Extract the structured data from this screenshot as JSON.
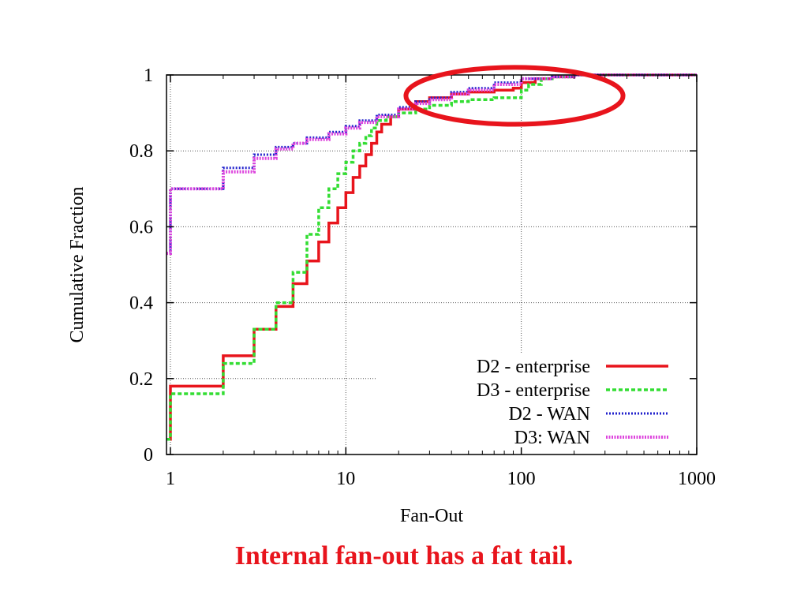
{
  "caption": "Internal fan-out has a fat tail.",
  "colors": {
    "caption": "#e8141c",
    "highlight_ellipse": "#e8141c"
  },
  "chart_data": {
    "type": "line",
    "xscale": "log",
    "xlabel": "Fan-Out",
    "ylabel": "Cumulative Fraction",
    "xlim": [
      0.95,
      1000
    ],
    "ylim": [
      0,
      1
    ],
    "xticks": [
      {
        "value": 1,
        "label": "1"
      },
      {
        "value": 10,
        "label": "10"
      },
      {
        "value": 100,
        "label": "100"
      },
      {
        "value": 1000,
        "label": "1000"
      }
    ],
    "yticks": [
      {
        "value": 0,
        "label": "0"
      },
      {
        "value": 0.2,
        "label": "0.2"
      },
      {
        "value": 0.4,
        "label": "0.4"
      },
      {
        "value": 0.6,
        "label": "0.6"
      },
      {
        "value": 0.8,
        "label": "0.8"
      },
      {
        "value": 1,
        "label": "1"
      }
    ],
    "grid": true,
    "legend_position": "bottom-right",
    "highlight": {
      "shape": "ellipse",
      "x_range": [
        22,
        380
      ],
      "y_range": [
        0.87,
        1.02
      ]
    },
    "series": [
      {
        "name": "D2 - enterprise",
        "color": "#e8141c",
        "style": "solid",
        "x": [
          0.95,
          1,
          2,
          3,
          4,
          5,
          6,
          7,
          8,
          9,
          10,
          11,
          12,
          13,
          14,
          15,
          16,
          18,
          20,
          25,
          30,
          40,
          50,
          70,
          90,
          100,
          120,
          150,
          200,
          300,
          1000
        ],
        "y": [
          0.04,
          0.18,
          0.26,
          0.33,
          0.39,
          0.45,
          0.51,
          0.56,
          0.61,
          0.65,
          0.69,
          0.73,
          0.76,
          0.79,
          0.82,
          0.85,
          0.87,
          0.89,
          0.91,
          0.93,
          0.94,
          0.95,
          0.955,
          0.96,
          0.965,
          0.98,
          0.99,
          0.995,
          1.0,
          1.0,
          1.0
        ]
      },
      {
        "name": "D3 - enterprise",
        "color": "#33dd33",
        "style": "dashed",
        "x": [
          0.95,
          1,
          2,
          3,
          4,
          5,
          6,
          7,
          8,
          9,
          10,
          11,
          12,
          13,
          14,
          15,
          17,
          20,
          25,
          30,
          40,
          50,
          70,
          90,
          100,
          110,
          130,
          150,
          200,
          300,
          1000
        ],
        "y": [
          0.04,
          0.16,
          0.24,
          0.33,
          0.4,
          0.48,
          0.58,
          0.65,
          0.7,
          0.74,
          0.77,
          0.8,
          0.82,
          0.84,
          0.86,
          0.88,
          0.89,
          0.9,
          0.91,
          0.92,
          0.93,
          0.935,
          0.94,
          0.94,
          0.96,
          0.975,
          0.99,
          0.995,
          1.0,
          1.0,
          1.0
        ]
      },
      {
        "name": "D2 - WAN",
        "color": "#2222cc",
        "style": "dotted",
        "x": [
          0.95,
          1,
          2,
          3,
          4,
          5,
          6,
          8,
          10,
          12,
          15,
          20,
          25,
          30,
          40,
          50,
          70,
          100,
          150,
          200,
          300,
          1000
        ],
        "y": [
          0.53,
          0.7,
          0.755,
          0.79,
          0.81,
          0.82,
          0.835,
          0.85,
          0.865,
          0.88,
          0.895,
          0.915,
          0.93,
          0.94,
          0.955,
          0.965,
          0.98,
          0.99,
          0.995,
          1.0,
          1.0,
          1.0
        ]
      },
      {
        "name": "D3: WAN",
        "color": "#dd44dd",
        "style": "dotted-thick",
        "x": [
          0.95,
          1,
          2,
          3,
          4,
          5,
          6,
          8,
          10,
          12,
          15,
          20,
          25,
          30,
          40,
          50,
          70,
          100,
          150,
          200,
          300,
          1000
        ],
        "y": [
          0.53,
          0.7,
          0.745,
          0.78,
          0.805,
          0.82,
          0.83,
          0.845,
          0.86,
          0.875,
          0.89,
          0.91,
          0.925,
          0.935,
          0.95,
          0.96,
          0.975,
          0.99,
          0.995,
          1.0,
          1.0,
          1.0
        ]
      }
    ]
  }
}
